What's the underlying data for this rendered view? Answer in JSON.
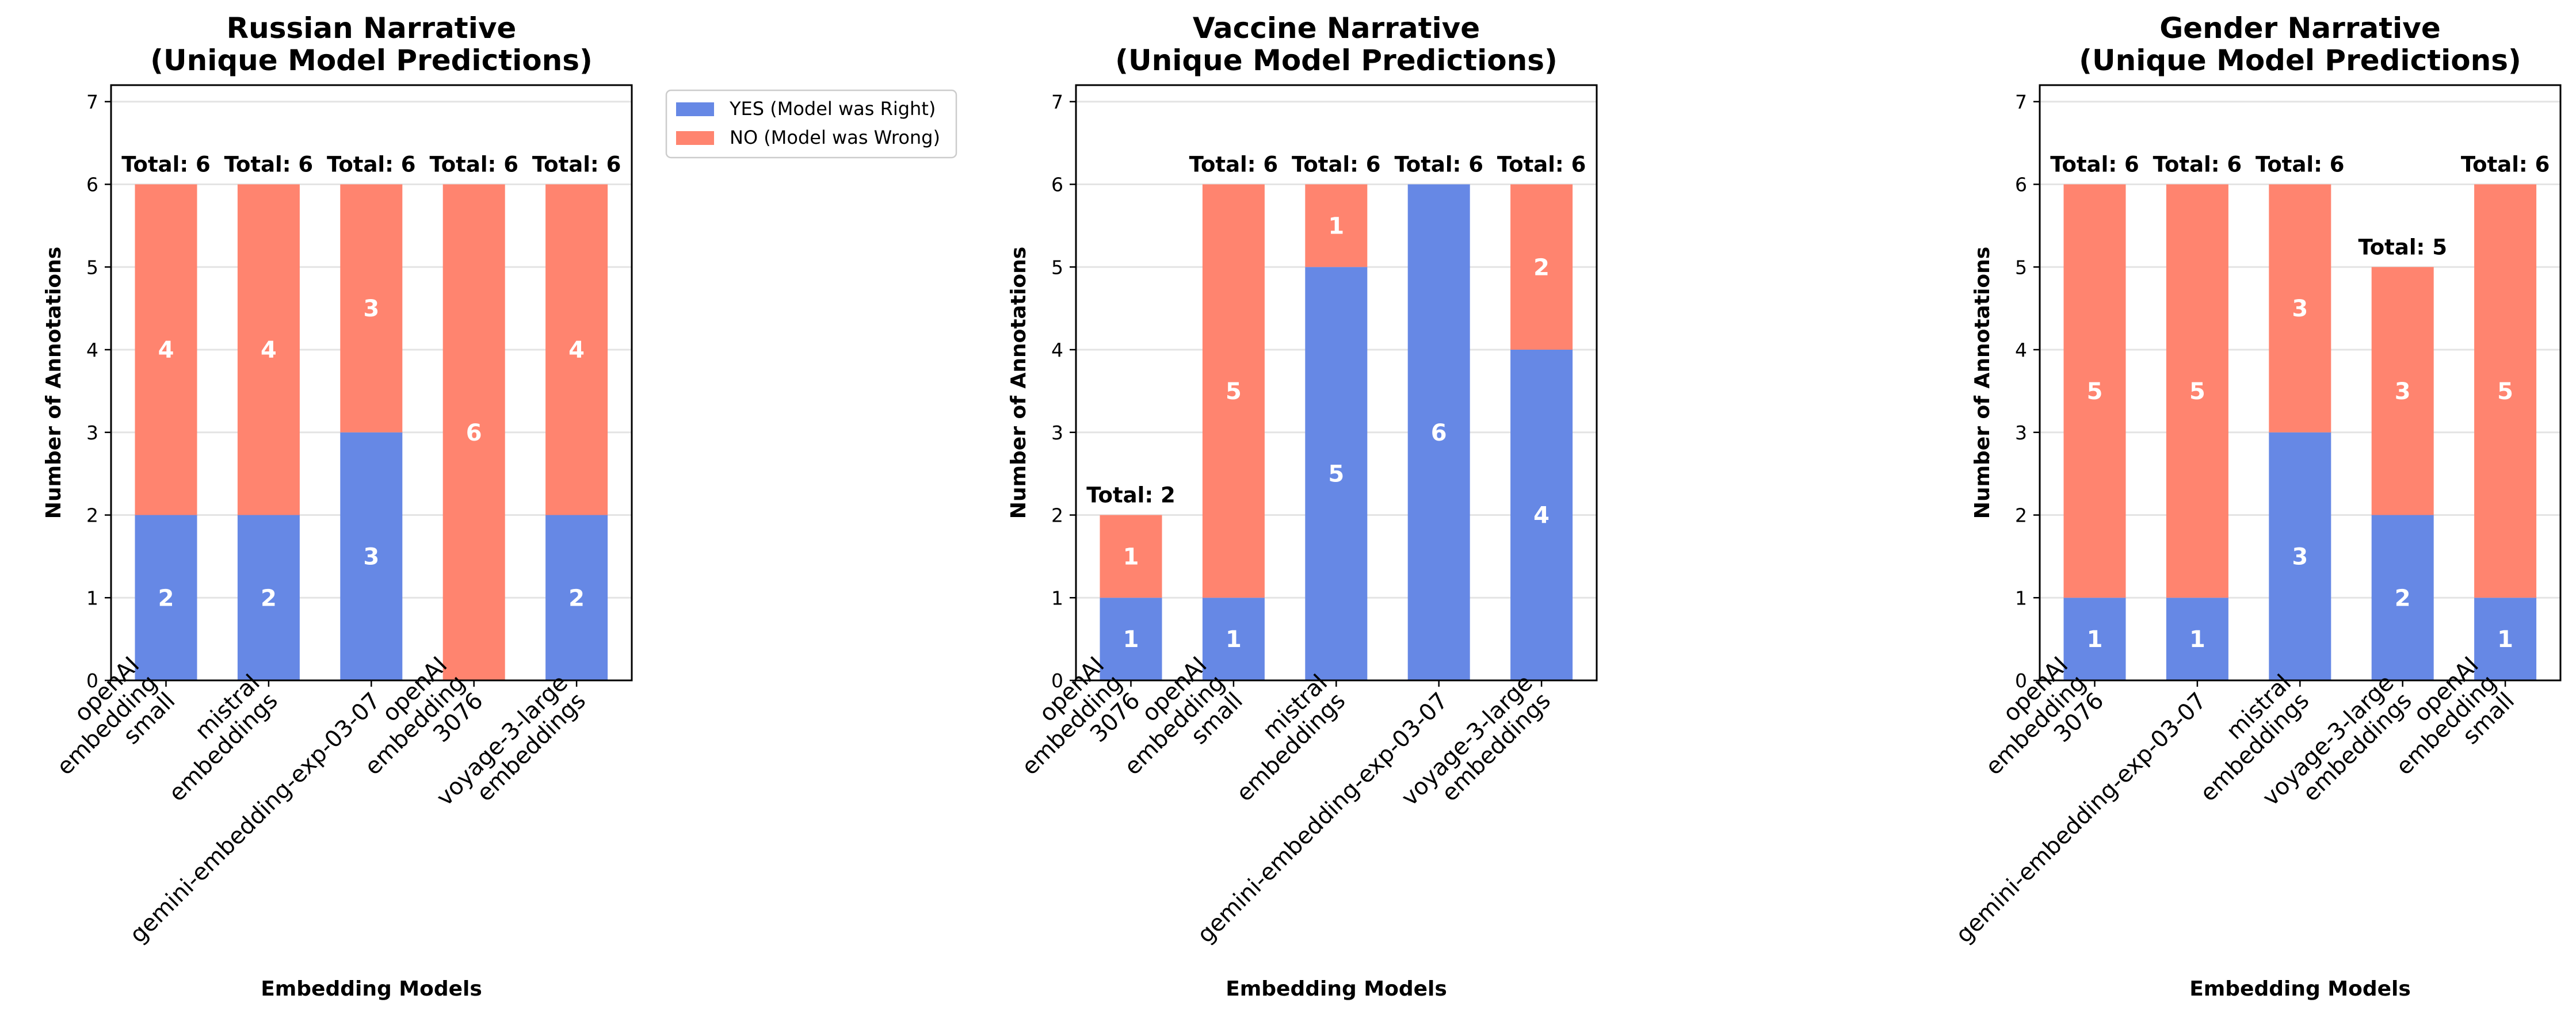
{
  "legend": {
    "position": "upper-right-outside-first-panel",
    "items": [
      {
        "label": "YES (Model was Right)",
        "color": "#6688e5"
      },
      {
        "label": "NO (Model was Wrong)",
        "color": "#ff846f"
      }
    ]
  },
  "chart_data": [
    {
      "type": "bar",
      "stacked": true,
      "title": "Russian Narrative\n(Unique Model Predictions)",
      "xlabel": "Embedding Models",
      "ylabel": "Number of Annotations",
      "ylim": [
        0,
        7.2
      ],
      "yticks": [
        0,
        1,
        2,
        3,
        4,
        5,
        6,
        7
      ],
      "grid": true,
      "categories": [
        "openAI\nembedding\nsmall",
        "mistral\nembeddings",
        "gemini-embedding-exp-03-07",
        "openAI\nembedding\n3076",
        "voyage-3-large\nembeddings"
      ],
      "series": [
        {
          "name": "YES (Model was Right)",
          "values": [
            2,
            2,
            3,
            0,
            2
          ]
        },
        {
          "name": "NO (Model was Wrong)",
          "values": [
            4,
            4,
            3,
            6,
            4
          ]
        }
      ],
      "total_labels": [
        "Total: 6",
        "Total: 6",
        "Total: 6",
        "Total: 6",
        "Total: 6"
      ]
    },
    {
      "type": "bar",
      "stacked": true,
      "title": "Vaccine Narrative\n(Unique Model Predictions)",
      "xlabel": "Embedding Models",
      "ylabel": "Number of Annotations",
      "ylim": [
        0,
        7.2
      ],
      "yticks": [
        0,
        1,
        2,
        3,
        4,
        5,
        6,
        7
      ],
      "grid": true,
      "categories": [
        "openAI\nembedding\n3076",
        "openAI\nembedding\nsmall",
        "mistral\nembeddings",
        "gemini-embedding-exp-03-07",
        "voyage-3-large\nembeddings"
      ],
      "series": [
        {
          "name": "YES (Model was Right)",
          "values": [
            1,
            1,
            5,
            6,
            4
          ]
        },
        {
          "name": "NO (Model was Wrong)",
          "values": [
            1,
            5,
            1,
            0,
            2
          ]
        }
      ],
      "total_labels": [
        "Total: 2",
        "Total: 6",
        "Total: 6",
        "Total: 6",
        "Total: 6"
      ]
    },
    {
      "type": "bar",
      "stacked": true,
      "title": "Gender Narrative\n(Unique Model Predictions)",
      "xlabel": "Embedding Models",
      "ylabel": "Number of Annotations",
      "ylim": [
        0,
        7.2
      ],
      "yticks": [
        0,
        1,
        2,
        3,
        4,
        5,
        6,
        7
      ],
      "grid": true,
      "categories": [
        "openAI\nembedding\n3076",
        "gemini-embedding-exp-03-07",
        "mistral\nembeddings",
        "voyage-3-large\nembeddings",
        "openAI\nembedding\nsmall"
      ],
      "series": [
        {
          "name": "YES (Model was Right)",
          "values": [
            1,
            1,
            3,
            2,
            1
          ]
        },
        {
          "name": "NO (Model was Wrong)",
          "values": [
            5,
            5,
            3,
            3,
            5
          ]
        }
      ],
      "total_labels": [
        "Total: 6",
        "Total: 6",
        "Total: 6",
        "Total: 5",
        "Total: 6"
      ]
    }
  ]
}
